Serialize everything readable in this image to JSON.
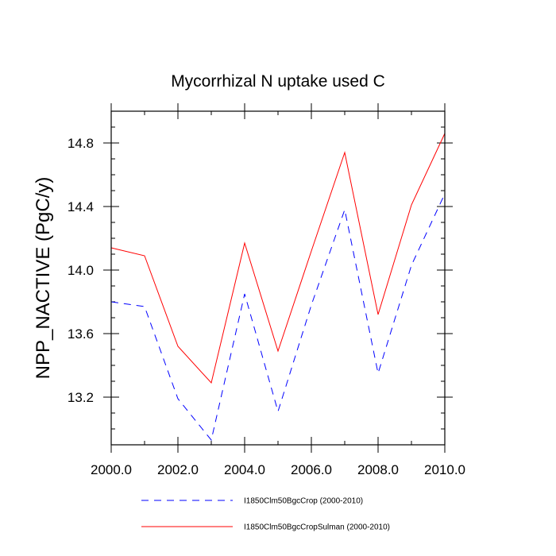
{
  "chart_data": {
    "type": "line",
    "title": "Mycorrhizal N uptake used C",
    "xlabel": "",
    "ylabel": "NPP_NACTIVE  (PgC/y)",
    "xlim": [
      2000,
      2010
    ],
    "ylim": [
      12.9,
      15.0
    ],
    "xticks": [
      2000,
      2002,
      2004,
      2006,
      2008,
      2010
    ],
    "xtick_labels": [
      "2000.0",
      "2002.0",
      "2004.0",
      "2006.0",
      "2008.0",
      "2010.0"
    ],
    "yticks": [
      13.2,
      13.6,
      14.0,
      14.4,
      14.8
    ],
    "ytick_labels": [
      "13.2",
      "13.6",
      "14.0",
      "14.4",
      "14.8"
    ],
    "grid": false,
    "legend_position": "bottom",
    "x": [
      2000,
      2001,
      2002,
      2003,
      2004,
      2005,
      2006,
      2007,
      2008,
      2009,
      2010
    ],
    "series": [
      {
        "name": "I1850Clm50BgcCrop (2000-2010)",
        "color": "#0000ff",
        "dashed": true,
        "values": [
          13.8,
          13.77,
          13.19,
          12.93,
          13.85,
          13.11,
          13.78,
          14.38,
          13.35,
          14.03,
          14.48
        ]
      },
      {
        "name": "I1850Clm50BgcCropSulman (2000-2010)",
        "color": "#ff0000",
        "dashed": false,
        "values": [
          14.14,
          14.09,
          13.52,
          13.29,
          14.17,
          13.49,
          14.12,
          14.74,
          13.72,
          14.41,
          14.86
        ]
      }
    ]
  }
}
